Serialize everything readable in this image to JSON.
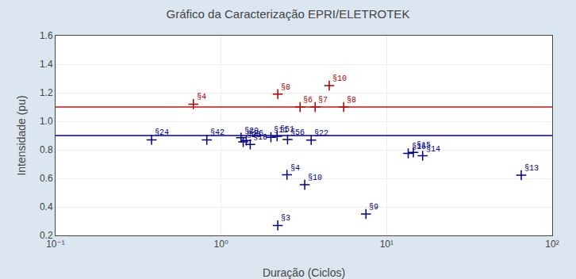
{
  "chart_data": {
    "type": "scatter",
    "title": "Gráfico da Caracterização EPRI/ELETROTEK",
    "xlabel": "Duração (Ciclos)",
    "ylabel": "Intensidade (pu)",
    "log": "x",
    "grid": true,
    "xlim": [
      0.1,
      100
    ],
    "ylim": [
      0.2,
      1.6
    ],
    "xticks": [
      {
        "value": 0.1,
        "label": "10⁻¹"
      },
      {
        "value": 1,
        "label": "10⁰"
      },
      {
        "value": 10,
        "label": "10¹"
      },
      {
        "value": 100,
        "label": "10²"
      }
    ],
    "yticks": [
      0.2,
      0.4,
      0.6,
      0.8,
      {
        "value": 1,
        "label": "1.0"
      },
      1.2,
      1.4,
      1.6
    ],
    "hlines": [
      {
        "y": 1.1,
        "color": "#cc1111"
      },
      {
        "y": 0.9,
        "color": "#000099"
      }
    ],
    "series": [
      {
        "color": "#aa0000",
        "marker": "cross",
        "x": [
          0.68,
          2.2,
          3.0,
          3.7,
          5.5,
          4.5
        ],
        "values": [
          1.12,
          1.19,
          1.1,
          1.1,
          1.1,
          1.25
        ],
        "labels": [
          "§4",
          "§8",
          "§6",
          "§7",
          "§8",
          "§10"
        ]
      },
      {
        "color": "#000080",
        "marker": "cross",
        "x": [
          0.38,
          0.82,
          1.32,
          1.42,
          2.0,
          2.18,
          2.52,
          3.5,
          1.36,
          1.5,
          2.5,
          3.2,
          2.2,
          7.5,
          13.5,
          14.5,
          16.5,
          65.0
        ],
        "values": [
          0.87,
          0.87,
          0.885,
          0.865,
          0.888,
          0.895,
          0.872,
          0.868,
          0.855,
          0.838,
          0.625,
          0.555,
          0.27,
          0.35,
          0.775,
          0.782,
          0.758,
          0.622
        ],
        "labels": [
          "§24",
          "§42",
          "§20",
          "§26",
          "§11",
          "§51",
          "§56",
          "§22",
          "§25",
          "§18",
          "§4",
          "§10",
          "§3",
          "§9",
          "§16",
          "§15",
          "§14",
          "§13"
        ]
      }
    ]
  }
}
